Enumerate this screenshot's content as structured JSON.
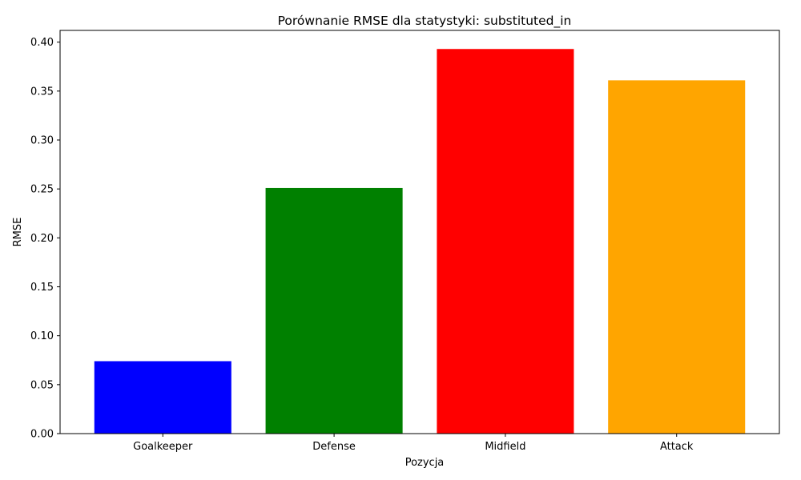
{
  "chart_data": {
    "type": "bar",
    "title": "Porównanie RMSE dla statystyki: substituted_in",
    "xlabel": "Pozycja",
    "ylabel": "RMSE",
    "categories": [
      "Goalkeeper",
      "Defense",
      "Midfield",
      "Attack"
    ],
    "values": [
      0.074,
      0.251,
      0.393,
      0.361
    ],
    "colors": [
      "#0000ff",
      "#008000",
      "#ff0000",
      "#ffa500"
    ],
    "ylim": [
      0,
      0.412
    ],
    "yticks": [
      0.0,
      0.05,
      0.1,
      0.15,
      0.2,
      0.25,
      0.3,
      0.35,
      0.4
    ],
    "ytick_labels": [
      "0.00",
      "0.05",
      "0.10",
      "0.15",
      "0.20",
      "0.25",
      "0.30",
      "0.35",
      "0.40"
    ],
    "grid": false,
    "legend": "none"
  }
}
